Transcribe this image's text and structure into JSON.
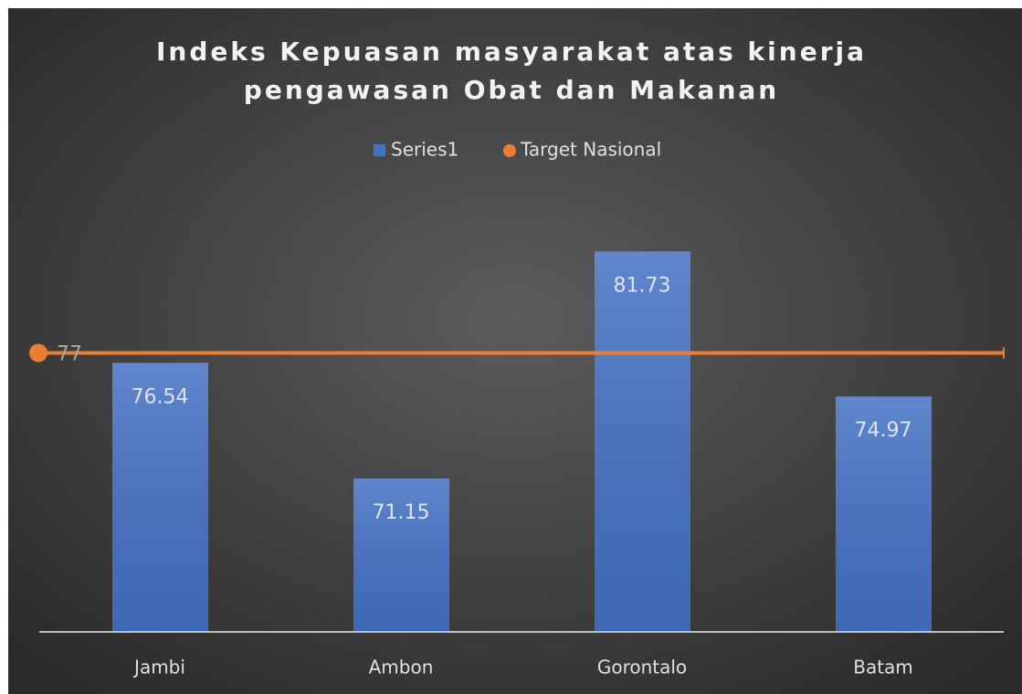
{
  "chart_data": {
    "type": "bar",
    "title": [
      "Indeks Kepuasan masyarakat atas kinerja",
      "pengawasan Obat dan Makanan"
    ],
    "categories": [
      "Jambi",
      "Ambon",
      "Gorontalo",
      "Batam"
    ],
    "series": [
      {
        "name": "Series1",
        "color": "#4472c4",
        "values": [
          76.54,
          71.15,
          81.73,
          74.97
        ]
      },
      {
        "name": "Target Nasional",
        "color": "#ed7d31",
        "value": 77
      }
    ],
    "ylim": [
      64,
      84
    ],
    "legend": "top"
  }
}
